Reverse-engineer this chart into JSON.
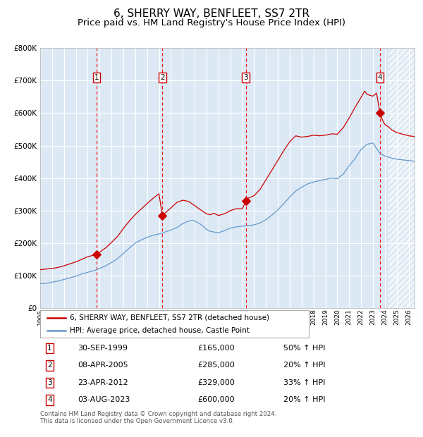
{
  "title": "6, SHERRY WAY, BENFLEET, SS7 2TR",
  "subtitle": "Price paid vs. HM Land Registry's House Price Index (HPI)",
  "footer1": "Contains HM Land Registry data © Crown copyright and database right 2024.",
  "footer2": "This data is licensed under the Open Government Licence v3.0.",
  "legend_red": "6, SHERRY WAY, BENFLEET, SS7 2TR (detached house)",
  "legend_blue": "HPI: Average price, detached house, Castle Point",
  "sales": [
    {
      "num": 1,
      "date": "30-SEP-1999",
      "price": 165000,
      "pct": "50%",
      "dir": "↑",
      "year": 1999.75
    },
    {
      "num": 2,
      "date": "08-APR-2005",
      "price": 285000,
      "pct": "20%",
      "dir": "↑",
      "year": 2005.27
    },
    {
      "num": 3,
      "date": "23-APR-2012",
      "price": 329000,
      "pct": "33%",
      "dir": "↑",
      "year": 2012.31
    },
    {
      "num": 4,
      "date": "03-AUG-2023",
      "price": 600000,
      "pct": "20%",
      "dir": "↑",
      "year": 2023.59
    }
  ],
  "ylim": [
    0,
    800000
  ],
  "xlim_start": 1995.0,
  "xlim_end": 2026.5,
  "bg_color": "#dce9f5",
  "hatch_color": "#b8cfe0",
  "grid_color": "#ffffff",
  "red_line_color": "#cc0000",
  "blue_line_color": "#6699cc",
  "sale_dot_color": "#cc0000",
  "vline_color": "#ff0000",
  "box_edge_color": "#cc0000",
  "title_fontsize": 11,
  "subtitle_fontsize": 9.5,
  "ytick_labels": [
    "£0",
    "£100K",
    "£200K",
    "£300K",
    "£400K",
    "£500K",
    "£600K",
    "£700K",
    "£800K"
  ],
  "ytick_values": [
    0,
    100000,
    200000,
    300000,
    400000,
    500000,
    600000,
    700000,
    800000
  ],
  "anchors_blue": [
    [
      1995.0,
      75000
    ],
    [
      1995.5,
      76000
    ],
    [
      1996.0,
      80000
    ],
    [
      1996.5,
      83000
    ],
    [
      1997.0,
      88000
    ],
    [
      1997.5,
      93000
    ],
    [
      1998.0,
      98000
    ],
    [
      1998.5,
      105000
    ],
    [
      1999.0,
      110000
    ],
    [
      1999.5,
      115000
    ],
    [
      1999.75,
      118000
    ],
    [
      2000.0,
      122000
    ],
    [
      2000.5,
      130000
    ],
    [
      2001.0,
      140000
    ],
    [
      2001.5,
      152000
    ],
    [
      2002.0,
      168000
    ],
    [
      2002.5,
      185000
    ],
    [
      2003.0,
      200000
    ],
    [
      2003.5,
      210000
    ],
    [
      2004.0,
      218000
    ],
    [
      2004.5,
      224000
    ],
    [
      2005.0,
      228000
    ],
    [
      2005.27,
      230000
    ],
    [
      2005.5,
      234000
    ],
    [
      2006.0,
      240000
    ],
    [
      2006.5,
      248000
    ],
    [
      2007.0,
      260000
    ],
    [
      2007.5,
      268000
    ],
    [
      2007.8,
      270000
    ],
    [
      2008.0,
      268000
    ],
    [
      2008.5,
      258000
    ],
    [
      2009.0,
      242000
    ],
    [
      2009.3,
      236000
    ],
    [
      2009.6,
      234000
    ],
    [
      2010.0,
      232000
    ],
    [
      2010.5,
      238000
    ],
    [
      2011.0,
      246000
    ],
    [
      2011.5,
      250000
    ],
    [
      2012.0,
      252000
    ],
    [
      2012.31,
      253000
    ],
    [
      2012.5,
      254000
    ],
    [
      2013.0,
      256000
    ],
    [
      2013.5,
      262000
    ],
    [
      2014.0,
      272000
    ],
    [
      2014.5,
      286000
    ],
    [
      2015.0,
      302000
    ],
    [
      2015.5,
      322000
    ],
    [
      2016.0,
      342000
    ],
    [
      2016.5,
      360000
    ],
    [
      2017.0,
      372000
    ],
    [
      2017.5,
      382000
    ],
    [
      2018.0,
      388000
    ],
    [
      2018.5,
      392000
    ],
    [
      2019.0,
      396000
    ],
    [
      2019.5,
      400000
    ],
    [
      2020.0,
      398000
    ],
    [
      2020.5,
      412000
    ],
    [
      2021.0,
      438000
    ],
    [
      2021.5,
      460000
    ],
    [
      2022.0,
      488000
    ],
    [
      2022.5,
      504000
    ],
    [
      2023.0,
      508000
    ],
    [
      2023.59,
      476000
    ],
    [
      2024.0,
      468000
    ],
    [
      2024.5,
      462000
    ],
    [
      2025.0,
      458000
    ],
    [
      2025.5,
      456000
    ],
    [
      2026.0,
      454000
    ],
    [
      2026.5,
      452000
    ]
  ],
  "anchors_red": [
    [
      1995.0,
      118000
    ],
    [
      1995.5,
      120000
    ],
    [
      1996.0,
      122000
    ],
    [
      1996.5,
      125000
    ],
    [
      1997.0,
      130000
    ],
    [
      1997.5,
      136000
    ],
    [
      1998.0,
      142000
    ],
    [
      1998.5,
      150000
    ],
    [
      1999.0,
      158000
    ],
    [
      1999.5,
      163000
    ],
    [
      1999.75,
      165000
    ],
    [
      2000.0,
      172000
    ],
    [
      2000.5,
      185000
    ],
    [
      2001.0,
      202000
    ],
    [
      2001.5,
      220000
    ],
    [
      2002.0,
      245000
    ],
    [
      2002.5,
      268000
    ],
    [
      2003.0,
      288000
    ],
    [
      2003.5,
      305000
    ],
    [
      2004.0,
      322000
    ],
    [
      2004.5,
      338000
    ],
    [
      2005.0,
      352000
    ],
    [
      2005.27,
      285000
    ],
    [
      2005.5,
      292000
    ],
    [
      2006.0,
      308000
    ],
    [
      2006.5,
      325000
    ],
    [
      2007.0,
      332000
    ],
    [
      2007.5,
      328000
    ],
    [
      2008.0,
      315000
    ],
    [
      2008.5,
      302000
    ],
    [
      2009.0,
      290000
    ],
    [
      2009.3,
      287000
    ],
    [
      2009.6,
      292000
    ],
    [
      2010.0,
      285000
    ],
    [
      2010.5,
      290000
    ],
    [
      2011.0,
      300000
    ],
    [
      2011.5,
      306000
    ],
    [
      2012.0,
      305000
    ],
    [
      2012.31,
      329000
    ],
    [
      2012.5,
      338000
    ],
    [
      2013.0,
      346000
    ],
    [
      2013.5,
      365000
    ],
    [
      2014.0,
      395000
    ],
    [
      2014.5,
      425000
    ],
    [
      2015.0,
      455000
    ],
    [
      2015.5,
      485000
    ],
    [
      2016.0,
      512000
    ],
    [
      2016.5,
      530000
    ],
    [
      2017.0,
      526000
    ],
    [
      2017.5,
      528000
    ],
    [
      2018.0,
      532000
    ],
    [
      2018.5,
      530000
    ],
    [
      2019.0,
      532000
    ],
    [
      2019.5,
      536000
    ],
    [
      2020.0,
      535000
    ],
    [
      2020.5,
      555000
    ],
    [
      2021.0,
      585000
    ],
    [
      2021.5,
      618000
    ],
    [
      2022.0,
      648000
    ],
    [
      2022.3,
      668000
    ],
    [
      2022.5,
      658000
    ],
    [
      2022.7,
      655000
    ],
    [
      2023.0,
      652000
    ],
    [
      2023.3,
      662000
    ],
    [
      2023.59,
      600000
    ],
    [
      2023.8,
      578000
    ],
    [
      2024.0,
      565000
    ],
    [
      2024.3,
      558000
    ],
    [
      2024.6,
      548000
    ],
    [
      2025.0,
      540000
    ],
    [
      2025.5,
      535000
    ],
    [
      2026.0,
      530000
    ],
    [
      2026.5,
      528000
    ]
  ]
}
